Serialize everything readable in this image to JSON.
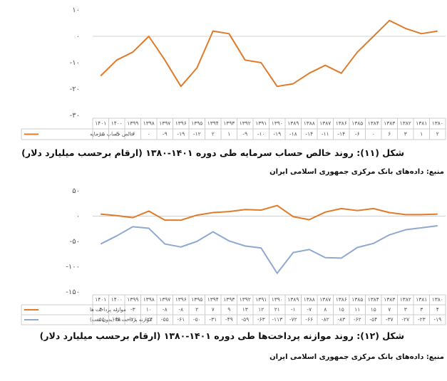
{
  "chart_data": [
    {
      "type": "line",
      "caption": "شکل (۱۱): روند خالص حساب سرمایه طی دوره ۱۴۰۱-۱۳۸۰ (ارقام برحسب میلیارد دلار)",
      "source": "منبع: داده‌های بانک مرکزی جمهوری اسلامی ایران",
      "categories": [
        "۱۳۸۰",
        "۱۳۸۱",
        "۱۳۸۲",
        "۱۳۸۳",
        "۱۳۸۴",
        "۱۳۸۵",
        "۱۳۸۶",
        "۱۳۸۷",
        "۱۳۸۸",
        "۱۳۸۹",
        "۱۳۹۰",
        "۱۳۹۱",
        "۱۳۹۲",
        "۱۳۹۳",
        "۱۳۹۴",
        "۱۳۹۵",
        "۱۳۹۶",
        "۱۳۹۷",
        "۱۳۹۸",
        "۱۳۹۹",
        "۱۴۰۰",
        "۱۴۰۱"
      ],
      "series": [
        {
          "name": "خالص حساب سرمایه",
          "color": "#e07b2a",
          "values": [
            2,
            1,
            3,
            6,
            0,
            -6,
            -14,
            -11,
            -14,
            -18,
            -19,
            -10,
            -9,
            1,
            2,
            -12,
            -19,
            -9,
            0,
            -6,
            -9,
            -15
          ],
          "value_labels": [
            "۲",
            "۱",
            "۳",
            "۶",
            "۰",
            "-۶",
            "-۱۴",
            "-۱۱",
            "-۱۴",
            "-۱۸",
            "-۱۹",
            "-۱۰",
            "-۹",
            "۱",
            "۲",
            "-۱۲",
            "-۱۹",
            "-۹",
            "۰",
            "-۶",
            "-۹",
            "-۱۵"
          ]
        }
      ],
      "ylim": [
        -30,
        10
      ],
      "yticks": [
        {
          "value": 10,
          "label": "۱۰"
        },
        {
          "value": 0,
          "label": "۰"
        },
        {
          "value": -10,
          "label": "-۱۰"
        },
        {
          "value": -20,
          "label": "-۲۰"
        },
        {
          "value": -30,
          "label": "-۳۰"
        }
      ]
    },
    {
      "type": "line",
      "caption": "شکل (۱۲): روند موازنه پرداخت‌ها طی دوره ۱۴۰۱-۱۳۸۰ (ارقام برحسب میلیارد دلار)",
      "source": "منبع: داده‌های بانک مرکزی جمهوری اسلامی ایران",
      "categories": [
        "۱۳۸۰",
        "۱۳۸۱",
        "۱۳۸۲",
        "۱۳۸۳",
        "۱۳۸۴",
        "۱۳۸۵",
        "۱۳۸۶",
        "۱۳۸۷",
        "۱۳۸۸",
        "۱۳۸۹",
        "۱۳۹۰",
        "۱۳۹۱",
        "۱۳۹۲",
        "۱۳۹۳",
        "۱۳۹۴",
        "۱۳۹۵",
        "۱۳۹۶",
        "۱۳۹۷",
        "۱۳۹۸",
        "۱۳۹۹",
        "۱۴۰۰",
        "۱۴۰۱"
      ],
      "series": [
        {
          "name": "موازنه پرداخت ها",
          "color": "#e07b2a",
          "values": [
            4,
            3,
            3,
            7,
            15,
            11,
            15,
            8,
            -7,
            -1,
            21,
            12,
            13,
            9,
            7,
            2,
            -8,
            -8,
            10,
            -3,
            1,
            4
          ],
          "value_labels": [
            "۴",
            "۳",
            "۳",
            "۷",
            "۱۵",
            "۱۱",
            "۱۵",
            "۸",
            "-۷",
            "-۱",
            "۲۱",
            "۱۲",
            "۱۳",
            "۹",
            "۷",
            "۲",
            "-۸",
            "-۸",
            "۱۰",
            "-۳",
            "۱",
            "۴"
          ]
        },
        {
          "name": "موازنه پرداخت ها (بدون نفت)",
          "color": "#8fa9cf",
          "values": [
            -19,
            -23,
            -27,
            -37,
            -54,
            -62,
            -83,
            -82,
            -66,
            -72,
            -113,
            -63,
            -59,
            -49,
            -31,
            -50,
            -61,
            -55,
            -24,
            -21,
            -39,
            -55
          ],
          "value_labels": [
            "-۱۹",
            "-۲۳",
            "-۲۷",
            "-۳۷",
            "-۵۴",
            "-۶۲",
            "-۸۳",
            "-۸۲",
            "-۶۶",
            "-۷۲",
            "-۱۱۳",
            "-۶۳",
            "-۵۹",
            "-۴۹",
            "-۳۱",
            "-۵۰",
            "-۶۱",
            "-۵۵",
            "-۲۴",
            "-۲۱",
            "-۳۹",
            "-۵۵"
          ]
        }
      ],
      "ylim": [
        -150,
        50
      ],
      "yticks": [
        {
          "value": 50,
          "label": "۵۰"
        },
        {
          "value": 0,
          "label": "۰"
        },
        {
          "value": -50,
          "label": "-۵۰"
        },
        {
          "value": -100,
          "label": "-۱۰۰"
        },
        {
          "value": -150,
          "label": "-۱۵۰"
        }
      ]
    }
  ]
}
